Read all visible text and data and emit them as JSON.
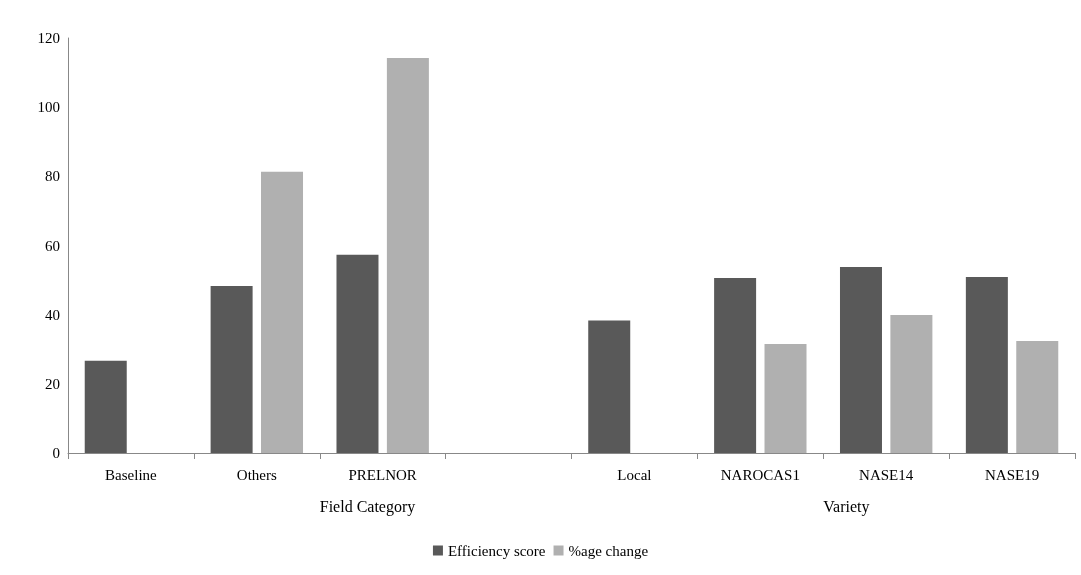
{
  "chart_data": {
    "type": "bar",
    "categories": [
      "Baseline",
      "Others",
      "PRELNOR",
      null,
      "Local",
      "NAROCAS1",
      "NASE14",
      "NASE19"
    ],
    "series": [
      {
        "name": "Efficiency score",
        "color": "#595959",
        "values": [
          26.7,
          48.3,
          57.3,
          null,
          38.3,
          50.6,
          53.8,
          50.9
        ]
      },
      {
        "name": "%age change",
        "color": "#b0b0b0",
        "values": [
          null,
          81.3,
          114.2,
          null,
          null,
          31.5,
          39.9,
          32.4
        ]
      }
    ],
    "ylim": [
      0,
      120
    ],
    "yticks": [
      0,
      20,
      40,
      60,
      80,
      100,
      120
    ],
    "grid": false,
    "legend": "bottom",
    "annotations": [
      "Field Category",
      "Variety"
    ]
  }
}
